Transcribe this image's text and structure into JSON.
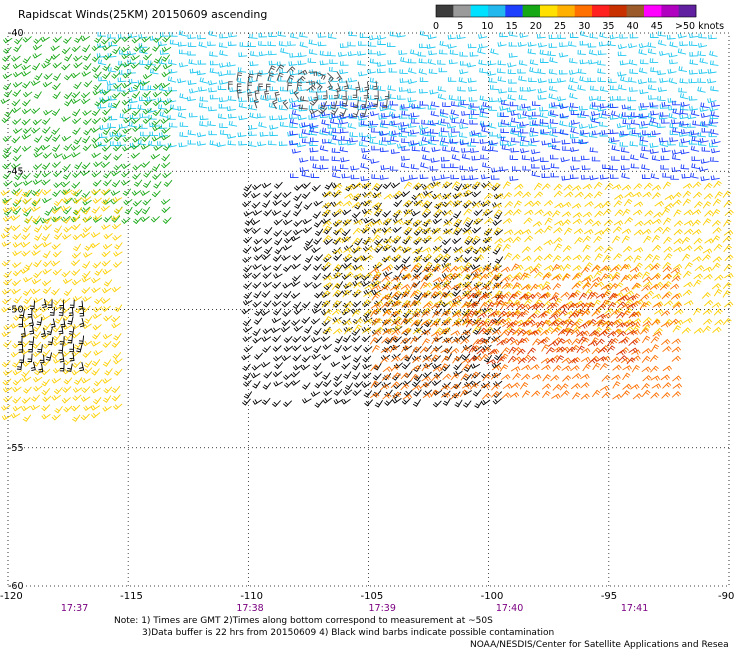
{
  "title": "Rapidscat Winds(25KM) 20150609 ascending",
  "color_scale": {
    "labels": [
      "0",
      "5",
      "10",
      "15",
      "20",
      "25",
      "30",
      "35",
      "40",
      "45",
      ">50 knots"
    ],
    "colors": [
      "#3c3c3c",
      "#9a9a9a",
      "#00e0ff",
      "#22b8ee",
      "#1f3fff",
      "#17a815",
      "#ffe000",
      "#ffb000",
      "#ff7000",
      "#ff2020",
      "#c83000",
      "#9a5a2a",
      "#ff00ff",
      "#b000c0",
      "#6020a0"
    ]
  },
  "map": {
    "lon_ticks": [
      "-120",
      "-115",
      "-110",
      "-105",
      "-100",
      "-95",
      "-90"
    ],
    "lat_ticks": [
      "-40",
      "-45",
      "-50",
      "-55",
      "-60"
    ],
    "time_labels": [
      "17:37",
      "17:38",
      "17:39",
      "17:40",
      "17:41"
    ],
    "time_color": "#7a0080",
    "gridline_style": "dotted"
  },
  "wind_fields": [
    {
      "region": "cyan-north",
      "color": "#22c8f0",
      "lon": [
        -116,
        -90
      ],
      "lat": [
        -40,
        -44.3
      ],
      "dir": "west"
    },
    {
      "region": "blue-band",
      "color": "#1f3fff",
      "lon": [
        -108,
        -90
      ],
      "lat": [
        -42.5,
        -45.6
      ],
      "dir": "west"
    },
    {
      "region": "gray-low",
      "color": "#4a4a4a",
      "lon": [
        -111,
        -104
      ],
      "lat": [
        -41.3,
        -43.0
      ],
      "dir": "cyclonic"
    },
    {
      "region": "green-west",
      "color": "#17a815",
      "lon": [
        -120,
        -113
      ],
      "lat": [
        -40,
        -47
      ],
      "dir": "southwest"
    },
    {
      "region": "yellow-west",
      "color": "#ffd000",
      "lon": [
        -120,
        -115
      ],
      "lat": [
        -45.5,
        -54
      ],
      "dir": "southwest"
    },
    {
      "region": "black-west",
      "color": "#000000",
      "lon": [
        -119.5,
        -116.5
      ],
      "lat": [
        -49.5,
        -52
      ],
      "dir": "south"
    },
    {
      "region": "black-central",
      "color": "#000000",
      "lon": [
        -110,
        -99
      ],
      "lat": [
        -45.3,
        -53.5
      ],
      "dir": "southwest"
    },
    {
      "region": "yellow-south",
      "color": "#ffd000",
      "lon": [
        -107,
        -90
      ],
      "lat": [
        -45.5,
        -51
      ],
      "dir": "northeast"
    },
    {
      "region": "orange-south",
      "color": "#ff7000",
      "lon": [
        -105,
        -92
      ],
      "lat": [
        -48.5,
        -53.5
      ],
      "dir": "northeast"
    },
    {
      "region": "red-south",
      "color": "#d83000",
      "lon": [
        -101,
        -94
      ],
      "lat": [
        -49.5,
        -52
      ],
      "dir": "northeast"
    }
  ],
  "notes": {
    "line1": "Note: 1) Times are GMT 2)Times along bottom correspond to measurement at ~50S",
    "line2": "3)Data buffer is 22 hrs from 20150609 4) Black wind barbs indicate possible contamination",
    "credit": "NOAA/NESDIS/Center for Satellite Applications and Resea"
  }
}
